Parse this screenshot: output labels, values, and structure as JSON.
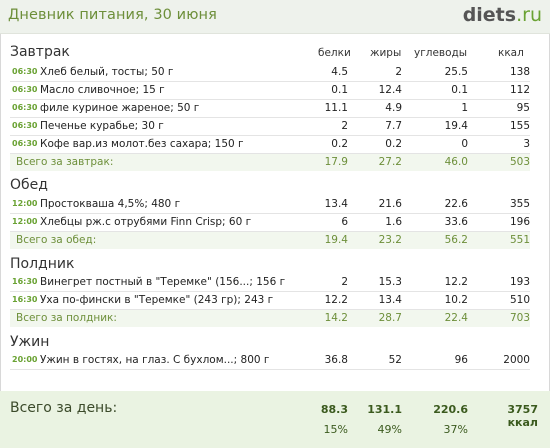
{
  "header": {
    "title": "Дневник питания, 30 июня",
    "logo_main": "diets",
    "logo_tld": ".ru"
  },
  "columns": {
    "protein": "белки",
    "fat": "жиры",
    "carbs": "углеводы",
    "kcal": "ккал"
  },
  "meals": [
    {
      "title": "Завтрак",
      "items": [
        {
          "time": "06:30",
          "food": "Хлеб белый, тосты; 50 г",
          "protein": "4.5",
          "fat": "2",
          "carbs": "25.5",
          "kcal": "138"
        },
        {
          "time": "06:30",
          "food": "Масло сливочное; 15 г",
          "protein": "0.1",
          "fat": "12.4",
          "carbs": "0.1",
          "kcal": "112"
        },
        {
          "time": "06:30",
          "food": "филе куриное жареное; 50 г",
          "protein": "11.1",
          "fat": "4.9",
          "carbs": "1",
          "kcal": "95"
        },
        {
          "time": "06:30",
          "food": "Печенье курабье; 30 г",
          "protein": "2",
          "fat": "7.7",
          "carbs": "19.4",
          "kcal": "155"
        },
        {
          "time": "06:30",
          "food": "Кофе вар.из молот.без сахара; 150 г",
          "protein": "0.2",
          "fat": "0.2",
          "carbs": "0",
          "kcal": "3"
        }
      ],
      "total": {
        "label": "Всего за завтрак:",
        "protein": "17.9",
        "fat": "27.2",
        "carbs": "46.0",
        "kcal": "503"
      }
    },
    {
      "title": "Обед",
      "items": [
        {
          "time": "12:00",
          "food": "Простокваша 4,5%; 480 г",
          "protein": "13.4",
          "fat": "21.6",
          "carbs": "22.6",
          "kcal": "355"
        },
        {
          "time": "12:00",
          "food": "Хлебцы рж.с отрубями  Finn Crisp; 60 г",
          "protein": "6",
          "fat": "1.6",
          "carbs": "33.6",
          "kcal": "196"
        }
      ],
      "total": {
        "label": "Всего за обед:",
        "protein": "19.4",
        "fat": "23.2",
        "carbs": "56.2",
        "kcal": "551"
      }
    },
    {
      "title": "Полдник",
      "items": [
        {
          "time": "16:30",
          "food": "Винегрет постный в \"Теремке\" (156...; 156 г",
          "protein": "2",
          "fat": "15.3",
          "carbs": "12.2",
          "kcal": "193"
        },
        {
          "time": "16:30",
          "food": "Уха по-фински в \"Теремке\" (243 гр); 243 г",
          "protein": "12.2",
          "fat": "13.4",
          "carbs": "10.2",
          "kcal": "510"
        }
      ],
      "total": {
        "label": "Всего за полдник:",
        "protein": "14.2",
        "fat": "28.7",
        "carbs": "22.4",
        "kcal": "703"
      }
    },
    {
      "title": "Ужин",
      "items": [
        {
          "time": "20:00",
          "food": "Ужин в гостях, на глаз. С бухлом...; 800 г",
          "protein": "36.8",
          "fat": "52",
          "carbs": "96",
          "kcal": "2000"
        }
      ]
    }
  ],
  "day_total": {
    "label": "Всего за день:",
    "protein": "88.3",
    "fat": "131.1",
    "carbs": "220.6",
    "kcal": "3757 ккал",
    "protein_pct": "15%",
    "fat_pct": "49%",
    "carbs_pct": "37%"
  },
  "colors": {
    "accent_green": "#6aa233",
    "title_green": "#6d8f3a",
    "total_bg": "#f2f7ee",
    "day_bg": "#eaf3e2"
  }
}
